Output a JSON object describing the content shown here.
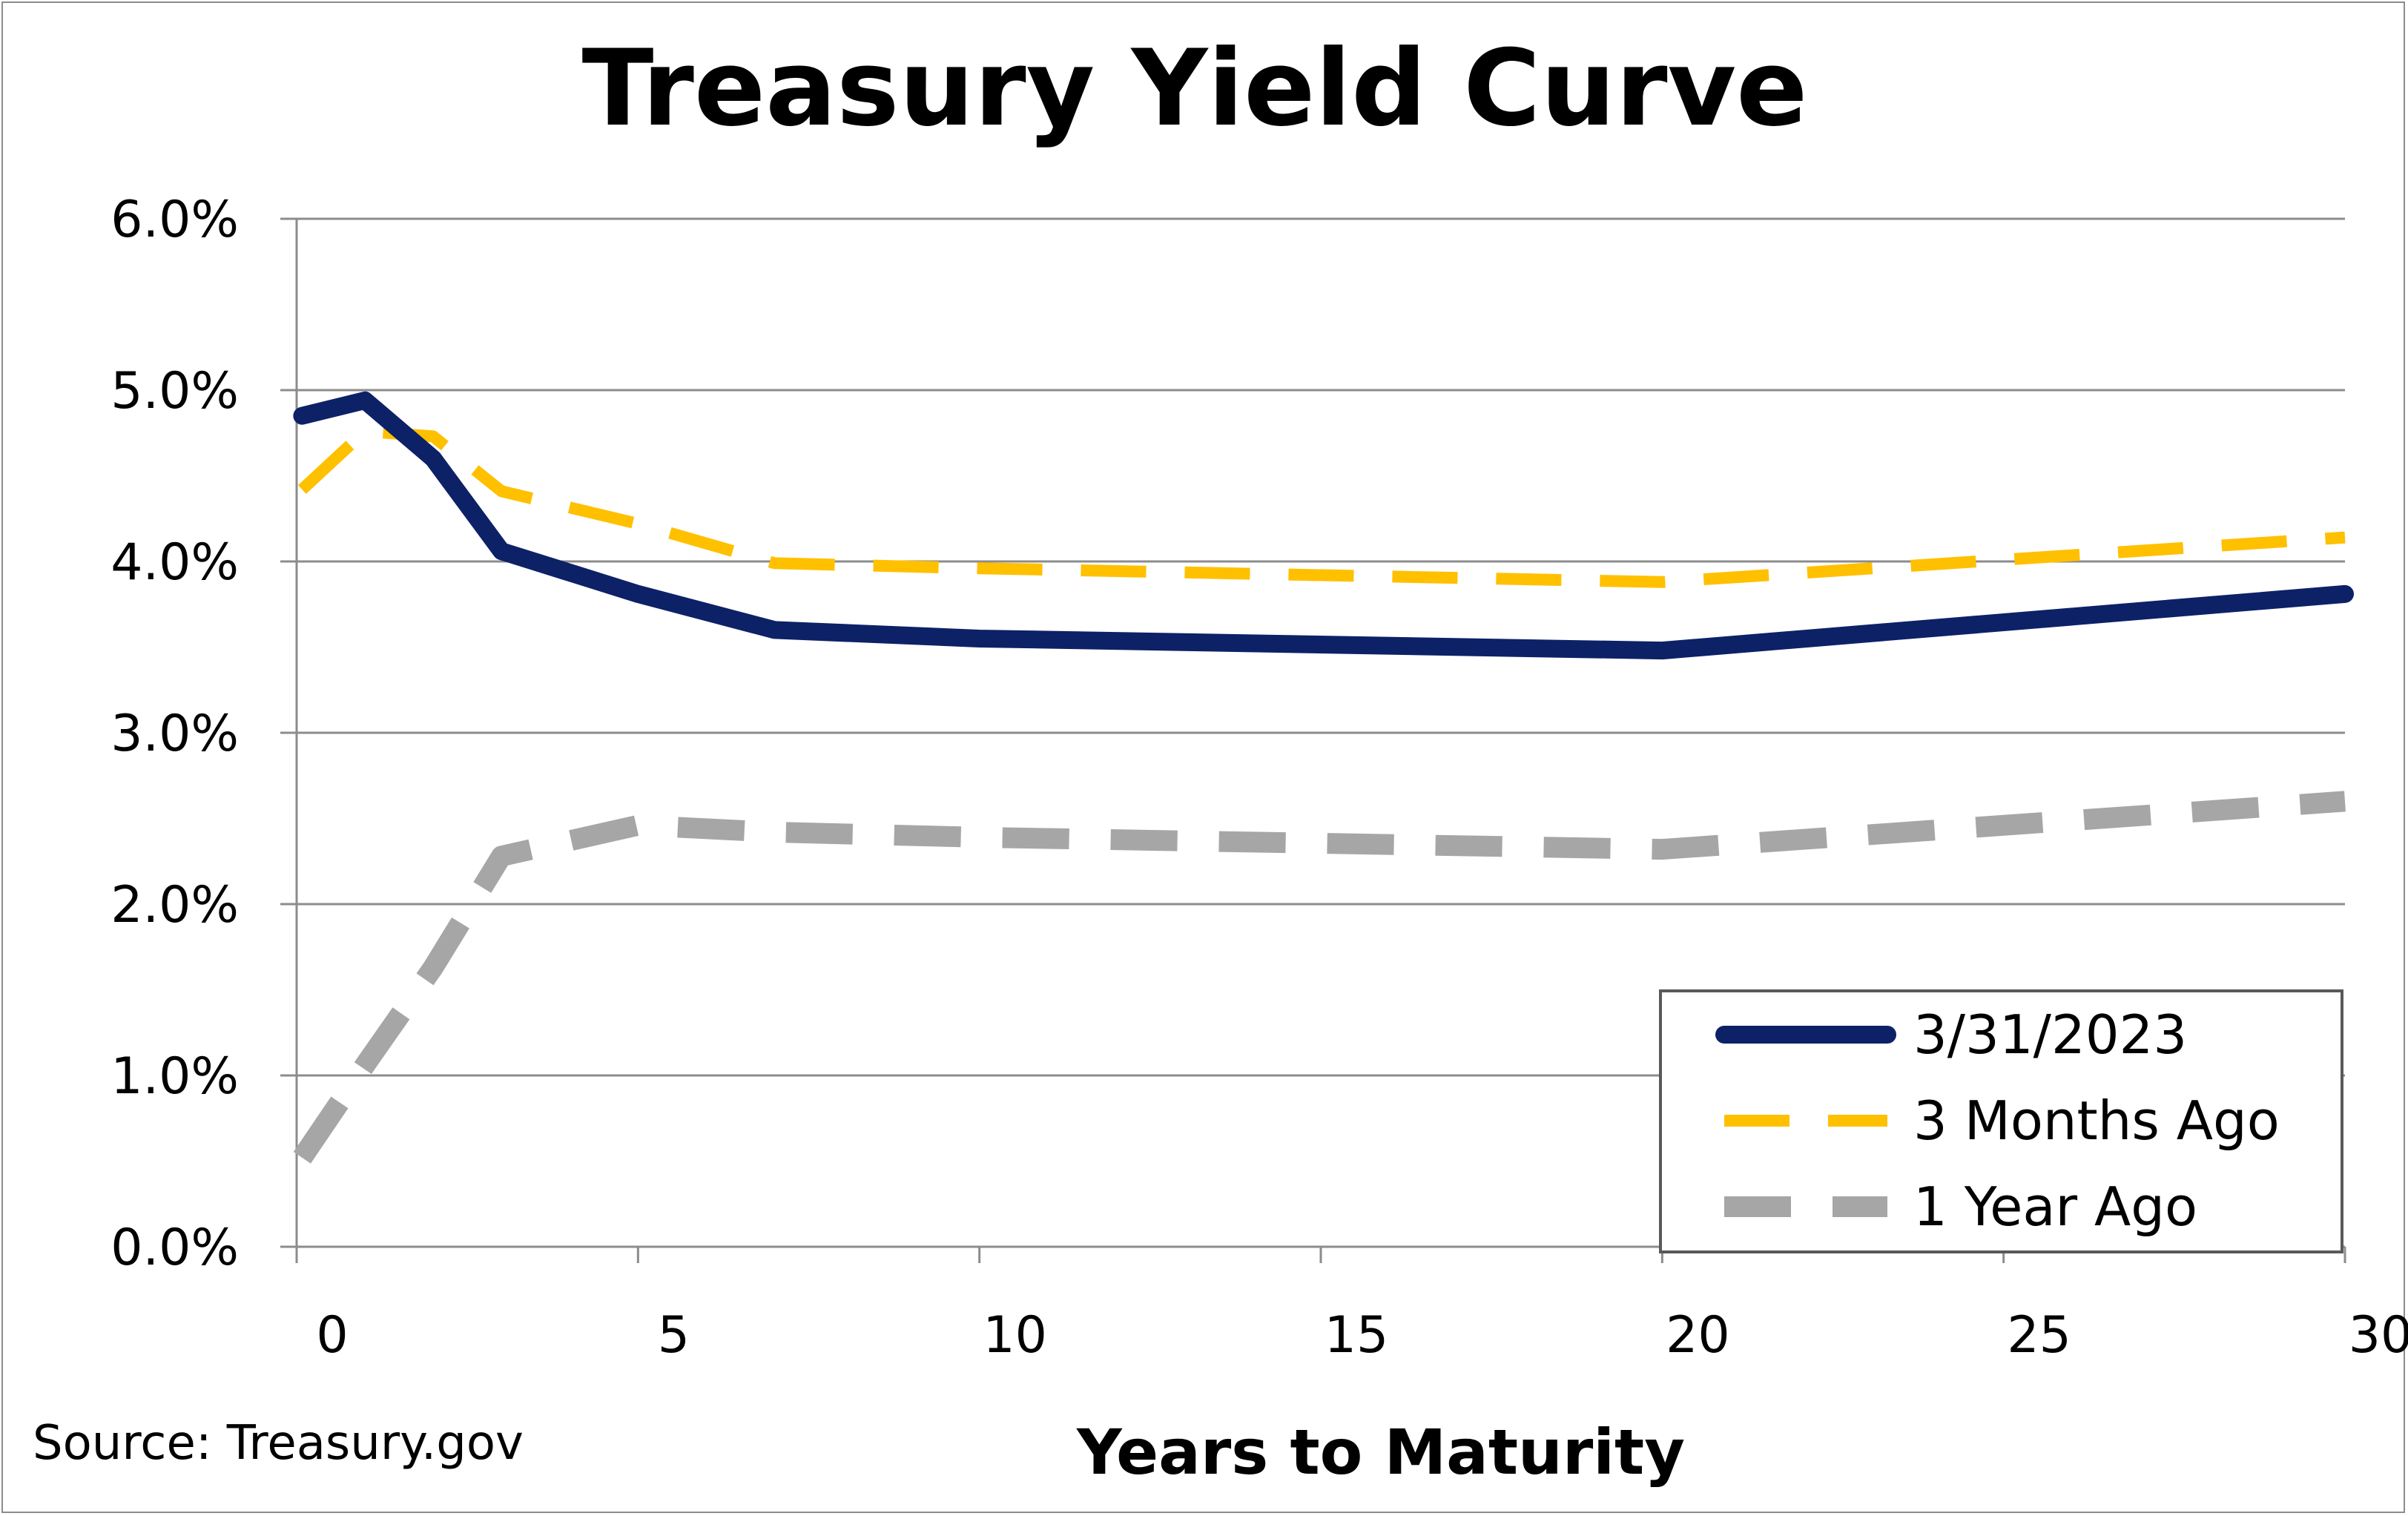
{
  "chart_data": {
    "type": "line",
    "title": "Treasury Yield Curve",
    "xlabel": "Years to Maturity",
    "ylabel": "",
    "source": "Source: Treasury.gov",
    "xlim": [
      0,
      30
    ],
    "ylim": [
      0,
      6
    ],
    "x_ticks": [
      0,
      5,
      10,
      15,
      20,
      25,
      30
    ],
    "x_tick_labels": [
      "0",
      "5",
      "10",
      "15",
      "20",
      "25",
      "30"
    ],
    "y_ticks": [
      0,
      1,
      2,
      3,
      4,
      5,
      6
    ],
    "y_tick_labels": [
      "0.0%",
      "1.0%",
      "2.0%",
      "3.0%",
      "4.0%",
      "5.0%",
      "6.0%"
    ],
    "grid": "horizontal",
    "legend_position": "bottom-right",
    "series": [
      {
        "name": "3/31/2023",
        "color": "#0d2167",
        "style": "solid",
        "x": [
          0.08,
          1,
          2,
          3,
          5,
          7,
          10,
          20,
          30
        ],
        "y": [
          4.85,
          4.94,
          4.6,
          4.06,
          3.81,
          3.6,
          3.55,
          3.48,
          3.81
        ]
      },
      {
        "name": "3 Months Ago",
        "color": "#ffc000",
        "style": "dash",
        "x": [
          0.08,
          1,
          2,
          3,
          5,
          7,
          10,
          20,
          30
        ],
        "y": [
          4.42,
          4.76,
          4.73,
          4.41,
          4.22,
          3.99,
          3.96,
          3.88,
          4.14
        ]
      },
      {
        "name": "1 Year Ago",
        "color": "#a6a6a6",
        "style": "dash",
        "x": [
          0.08,
          1,
          2,
          3,
          5,
          7,
          10,
          20,
          30
        ],
        "y": [
          0.52,
          1.06,
          1.63,
          2.28,
          2.46,
          2.42,
          2.39,
          2.32,
          2.6
        ]
      }
    ]
  }
}
